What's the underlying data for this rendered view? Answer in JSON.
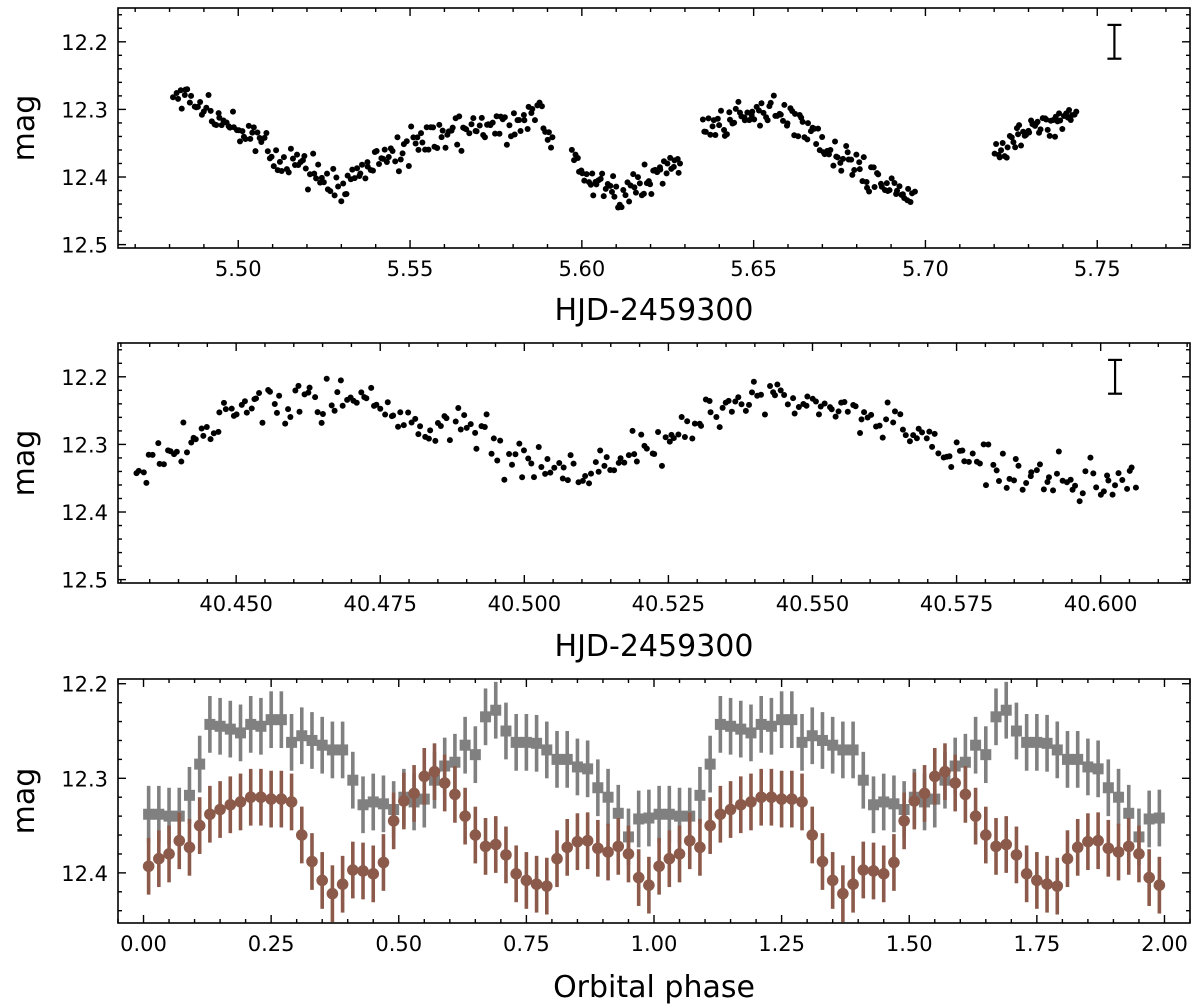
{
  "chart_data": [
    {
      "type": "scatter",
      "xlabel": "HJD-2459300",
      "ylabel": "mag",
      "xlim": [
        5.465,
        5.777
      ],
      "ylim": [
        12.15,
        12.505
      ],
      "y_inverted": true,
      "xticks": [
        5.5,
        5.55,
        5.6,
        5.65,
        5.7,
        5.75
      ],
      "xtick_labels": [
        "5.50",
        "5.55",
        "5.60",
        "5.65",
        "5.70",
        "5.75"
      ],
      "yticks": [
        12.2,
        12.3,
        12.4,
        12.5
      ],
      "ytick_labels": [
        "12.2",
        "12.3",
        "12.4",
        "12.5"
      ],
      "marker_color": "#000000",
      "typical_error_bar": {
        "x": 5.755,
        "y": 12.2,
        "half_height": 0.025
      },
      "segments": [
        {
          "x_start": 5.481,
          "x_end": 5.592,
          "knots": [
            [
              5.481,
              12.29
            ],
            [
              5.484,
              12.275
            ],
            [
              5.49,
              12.295
            ],
            [
              5.5,
              12.33
            ],
            [
              5.51,
              12.365
            ],
            [
              5.52,
              12.39
            ],
            [
              5.53,
              12.415
            ],
            [
              5.54,
              12.38
            ],
            [
              5.55,
              12.355
            ],
            [
              5.56,
              12.33
            ],
            [
              5.57,
              12.325
            ],
            [
              5.58,
              12.32
            ],
            [
              5.587,
              12.305
            ],
            [
              5.592,
              12.355
            ]
          ],
          "scatter": 0.035,
          "n": 190
        },
        {
          "x_start": 5.597,
          "x_end": 5.629,
          "knots": [
            [
              5.597,
              12.36
            ],
            [
              5.605,
              12.415
            ],
            [
              5.61,
              12.425
            ],
            [
              5.62,
              12.405
            ],
            [
              5.629,
              12.38
            ]
          ],
          "scatter": 0.03,
          "n": 62
        },
        {
          "x_start": 5.635,
          "x_end": 5.697,
          "knots": [
            [
              5.635,
              12.33
            ],
            [
              5.645,
              12.32
            ],
            [
              5.655,
              12.295
            ],
            [
              5.665,
              12.33
            ],
            [
              5.675,
              12.375
            ],
            [
              5.685,
              12.4
            ],
            [
              5.697,
              12.43
            ]
          ],
          "scatter": 0.035,
          "n": 115
        },
        {
          "x_start": 5.72,
          "x_end": 5.744,
          "knots": [
            [
              5.72,
              12.365
            ],
            [
              5.73,
              12.33
            ],
            [
              5.744,
              12.305
            ]
          ],
          "scatter": 0.025,
          "n": 50
        }
      ]
    },
    {
      "type": "scatter",
      "xlabel": "HJD-2459300",
      "ylabel": "mag",
      "xlim": [
        40.4295,
        40.6155
      ],
      "ylim": [
        12.15,
        12.505
      ],
      "y_inverted": true,
      "xticks": [
        40.45,
        40.475,
        40.5,
        40.525,
        40.55,
        40.575,
        40.6
      ],
      "xtick_labels": [
        "40.450",
        "40.475",
        "40.500",
        "40.525",
        "40.550",
        "40.575",
        "40.600"
      ],
      "yticks": [
        12.2,
        12.3,
        12.4,
        12.5
      ],
      "ytick_labels": [
        "12.2",
        "12.3",
        "12.4",
        "12.5"
      ],
      "marker_color": "#000000",
      "typical_error_bar": {
        "x": 40.6025,
        "y": 12.2,
        "half_height": 0.025
      },
      "segments": [
        {
          "x_start": 40.4325,
          "x_end": 40.6065,
          "knots": [
            [
              40.4325,
              12.33
            ],
            [
              40.44,
              12.305
            ],
            [
              40.45,
              12.25
            ],
            [
              40.46,
              12.24
            ],
            [
              40.47,
              12.235
            ],
            [
              40.48,
              12.255
            ],
            [
              40.49,
              12.28
            ],
            [
              40.5,
              12.33
            ],
            [
              40.51,
              12.345
            ],
            [
              40.52,
              12.31
            ],
            [
              40.53,
              12.265
            ],
            [
              40.54,
              12.225
            ],
            [
              40.548,
              12.23
            ],
            [
              40.555,
              12.255
            ],
            [
              40.565,
              12.27
            ],
            [
              40.575,
              12.31
            ],
            [
              40.585,
              12.34
            ],
            [
              40.595,
              12.355
            ],
            [
              40.6065,
              12.35
            ]
          ],
          "scatter": 0.04,
          "n": 300
        }
      ]
    },
    {
      "type": "scatter",
      "xlabel": "Orbital phase",
      "ylabel": "mag",
      "xlim": [
        -0.05,
        2.05
      ],
      "ylim": [
        12.195,
        12.453
      ],
      "y_inverted": true,
      "xticks": [
        0,
        0.25,
        0.5,
        0.75,
        1.0,
        1.25,
        1.5,
        1.75,
        2.0
      ],
      "xtick_labels": [
        "0.00",
        "0.25",
        "0.50",
        "0.75",
        "1.00",
        "1.25",
        "1.50",
        "1.75",
        "2.00"
      ],
      "yticks": [
        12.2,
        12.3,
        12.4
      ],
      "ytick_labels": [
        "12.2",
        "12.3",
        "12.4"
      ],
      "error": 0.03,
      "series": [
        {
          "marker": "square",
          "color": "#808080",
          "x": [
            0.01,
            0.03,
            0.05,
            0.07,
            0.09,
            0.11,
            0.13,
            0.15,
            0.17,
            0.19,
            0.21,
            0.23,
            0.25,
            0.27,
            0.29,
            0.31,
            0.33,
            0.35,
            0.37,
            0.39,
            0.41,
            0.43,
            0.45,
            0.47,
            0.49,
            0.51,
            0.53,
            0.55,
            0.57,
            0.59,
            0.61,
            0.63,
            0.65,
            0.67,
            0.69,
            0.71,
            0.73,
            0.75,
            0.77,
            0.79,
            0.81,
            0.83,
            0.85,
            0.87,
            0.89,
            0.91,
            0.93,
            0.95,
            0.97,
            0.99
          ],
          "y": [
            12.338,
            12.338,
            12.34,
            12.34,
            12.318,
            12.285,
            12.243,
            12.245,
            12.248,
            12.252,
            12.243,
            12.245,
            12.238,
            12.238,
            12.262,
            12.255,
            12.26,
            12.265,
            12.27,
            12.27,
            12.302,
            12.328,
            12.325,
            12.327,
            12.333,
            12.32,
            12.325,
            12.322,
            12.302,
            12.287,
            12.283,
            12.265,
            12.275,
            12.235,
            12.228,
            12.25,
            12.262,
            12.262,
            12.263,
            12.27,
            12.28,
            12.28,
            12.288,
            12.29,
            12.31,
            12.32,
            12.337,
            12.362,
            12.343,
            12.342
          ]
        },
        {
          "marker": "circle",
          "color": "#8b5a4a",
          "x": [
            0.01,
            0.03,
            0.05,
            0.07,
            0.09,
            0.11,
            0.13,
            0.15,
            0.17,
            0.19,
            0.21,
            0.23,
            0.25,
            0.27,
            0.29,
            0.31,
            0.33,
            0.35,
            0.37,
            0.39,
            0.41,
            0.43,
            0.45,
            0.47,
            0.49,
            0.51,
            0.53,
            0.55,
            0.57,
            0.59,
            0.61,
            0.63,
            0.65,
            0.67,
            0.69,
            0.71,
            0.73,
            0.75,
            0.77,
            0.79,
            0.81,
            0.83,
            0.85,
            0.87,
            0.89,
            0.91,
            0.93,
            0.95,
            0.97,
            0.99
          ],
          "y": [
            12.393,
            12.385,
            12.38,
            12.366,
            12.373,
            12.35,
            12.338,
            12.333,
            12.328,
            12.325,
            12.32,
            12.32,
            12.322,
            12.322,
            12.325,
            12.36,
            12.388,
            12.408,
            12.422,
            12.412,
            12.397,
            12.398,
            12.401,
            12.389,
            12.345,
            12.324,
            12.316,
            12.298,
            12.293,
            12.305,
            12.317,
            12.34,
            12.36,
            12.372,
            12.37,
            12.381,
            12.401,
            12.408,
            12.412,
            12.414,
            12.385,
            12.373,
            12.367,
            12.366,
            12.374,
            12.378,
            12.372,
            12.38,
            12.405,
            12.413
          ]
        }
      ]
    }
  ]
}
